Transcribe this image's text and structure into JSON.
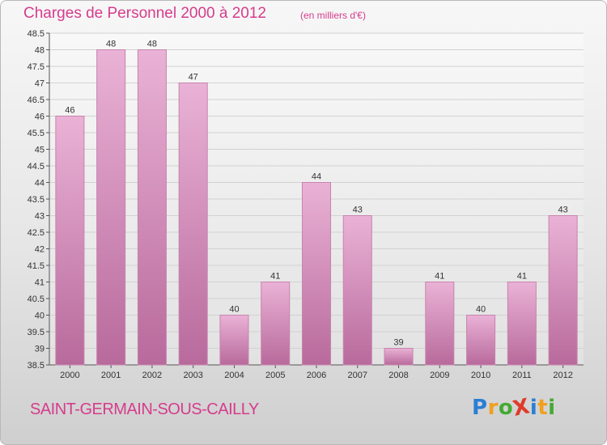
{
  "header": {
    "title": "Charges de Personnel 2000 à 2012",
    "subtitle": "(en milliers d'€)"
  },
  "footer": {
    "commune": "SAINT-GERMAIN-SOUS-CAILLY",
    "logo": {
      "text": "ProXiti",
      "letters": [
        {
          "char": "P",
          "color": "#2a7fd4"
        },
        {
          "char": "r",
          "color": "#f0a020"
        },
        {
          "char": "o",
          "color": "#44aa33"
        },
        {
          "char": "X",
          "color": "#e03a2a"
        },
        {
          "char": "i",
          "color": "#2a7fd4"
        },
        {
          "char": "t",
          "color": "#f0a020"
        },
        {
          "char": "i",
          "color": "#44aa33"
        }
      ]
    }
  },
  "chart_data": {
    "type": "bar",
    "categories": [
      "2000",
      "2001",
      "2002",
      "2003",
      "2004",
      "2005",
      "2006",
      "2007",
      "2008",
      "2009",
      "2010",
      "2011",
      "2012"
    ],
    "values": [
      46,
      48,
      48,
      47,
      40,
      41,
      44,
      43,
      39,
      41,
      40,
      41,
      43
    ],
    "data_labels": [
      "46",
      "48",
      "48",
      "47",
      "40",
      "41",
      "44",
      "43",
      "39",
      "41",
      "40",
      "41",
      "43"
    ],
    "ylim": [
      38.5,
      48.5
    ],
    "yticks": [
      "38.5",
      "39",
      "39.5",
      "40",
      "40.5",
      "41",
      "41.5",
      "42",
      "42.5",
      "43",
      "43.5",
      "44",
      "44.5",
      "45",
      "45.5",
      "46",
      "46.5",
      "47",
      "47.5",
      "48",
      "48.5"
    ],
    "bar_color": "#e0a0c8",
    "grid": true,
    "xlabel": "",
    "ylabel": ""
  }
}
